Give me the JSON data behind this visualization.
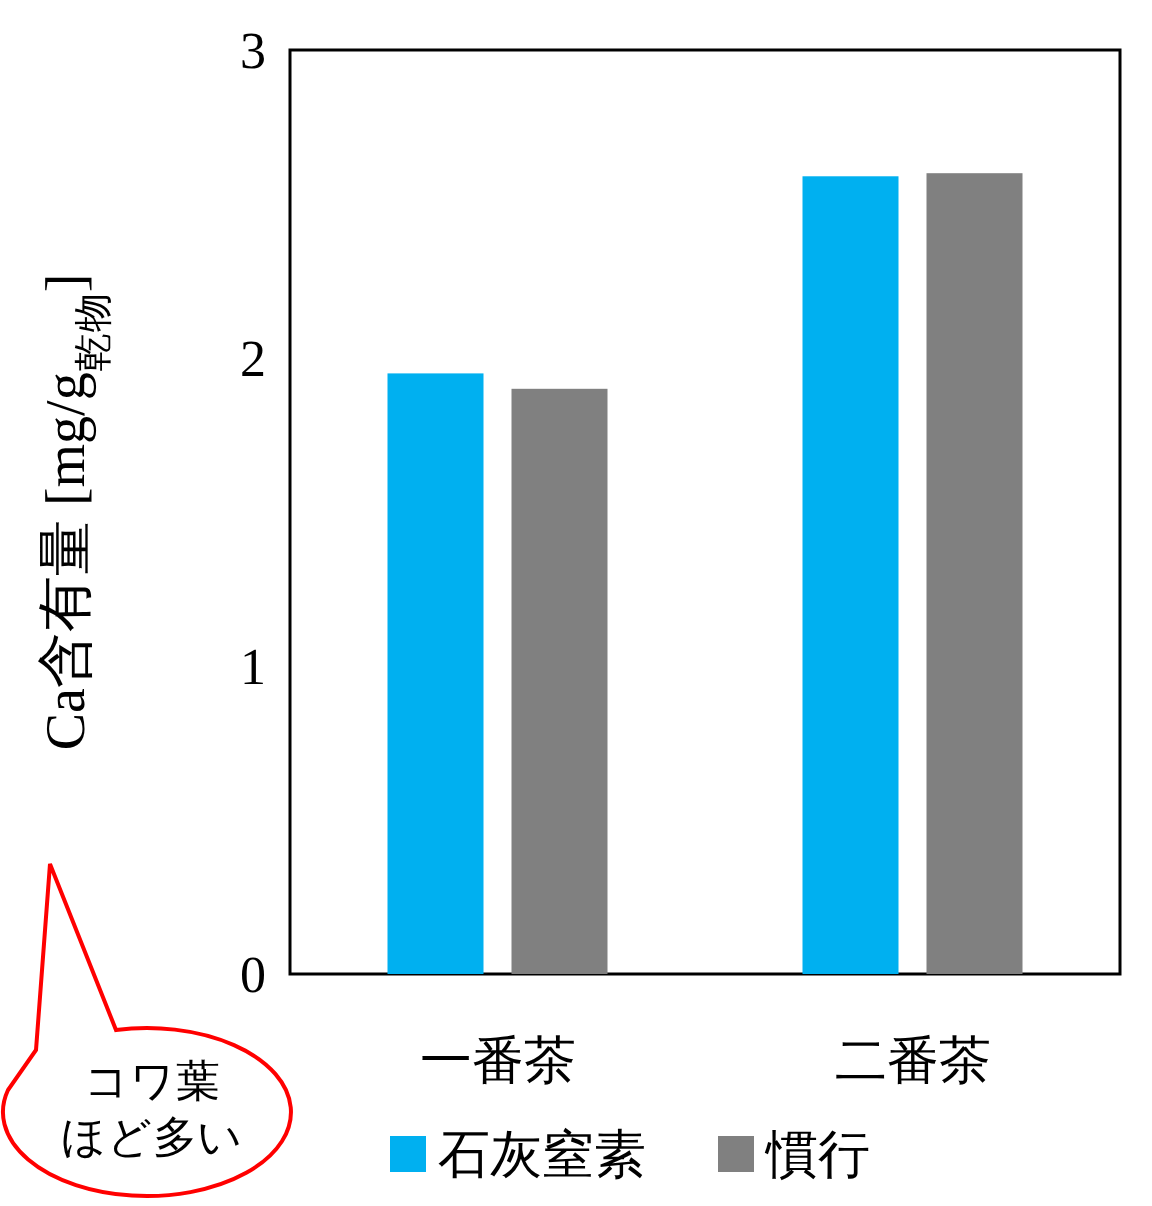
{
  "chart_data": {
    "type": "bar",
    "categories": [
      "一番茶",
      "二番茶"
    ],
    "series": [
      {
        "name": "石灰窒素",
        "color": "#00b0f0",
        "values": [
          1.95,
          2.59
        ]
      },
      {
        "name": "慣行",
        "color": "#808080",
        "values": [
          1.9,
          2.6
        ]
      }
    ],
    "ylabel": "Ca含有量 [mg/g$_{乾物}$]",
    "ylim": [
      0,
      3
    ],
    "yticks": [
      0,
      1,
      2,
      3
    ],
    "legend": "bottom",
    "annotations": [
      "コワ葉ほど多い"
    ]
  }
}
